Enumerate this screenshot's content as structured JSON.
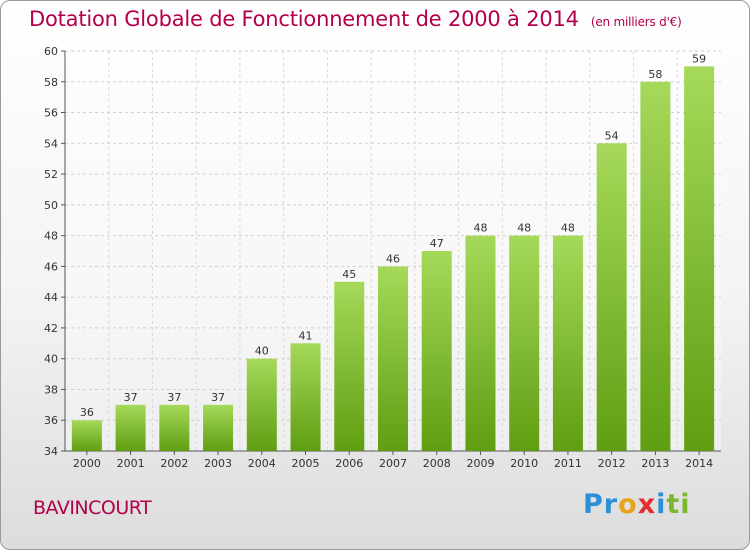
{
  "page": {
    "location": "BAVINCOURT",
    "logo_letters": [
      {
        "ch": "P",
        "color": "#2b8fd6"
      },
      {
        "ch": "r",
        "color": "#2b8fd6"
      },
      {
        "ch": "o",
        "color": "#e8a21b"
      },
      {
        "ch": "x",
        "color": "#e52d2d"
      },
      {
        "ch": "i",
        "color": "#2b8fd6"
      },
      {
        "ch": "t",
        "color": "#7cb82f"
      },
      {
        "ch": "i",
        "color": "#7cb82f"
      }
    ]
  },
  "chart_data": {
    "type": "bar",
    "title": "Dotation Globale de Fonctionnement de 2000 à 2014",
    "subtitle": "(en milliers d'€)",
    "xlabel": "",
    "ylabel": "",
    "categories": [
      "2000",
      "2001",
      "2002",
      "2003",
      "2004",
      "2005",
      "2006",
      "2007",
      "2008",
      "2009",
      "2010",
      "2011",
      "2012",
      "2013",
      "2014"
    ],
    "values": [
      36,
      37,
      37,
      37,
      40,
      41,
      45,
      46,
      47,
      48,
      48,
      48,
      54,
      58,
      59
    ],
    "ylim": [
      34,
      60
    ],
    "yticks": [
      34,
      36,
      38,
      40,
      42,
      44,
      46,
      48,
      50,
      52,
      54,
      56,
      58,
      60
    ],
    "grid": true,
    "bar_color_light": "#a6d95a",
    "bar_color_dark": "#5f9e12",
    "title_color": "#b3004d"
  }
}
